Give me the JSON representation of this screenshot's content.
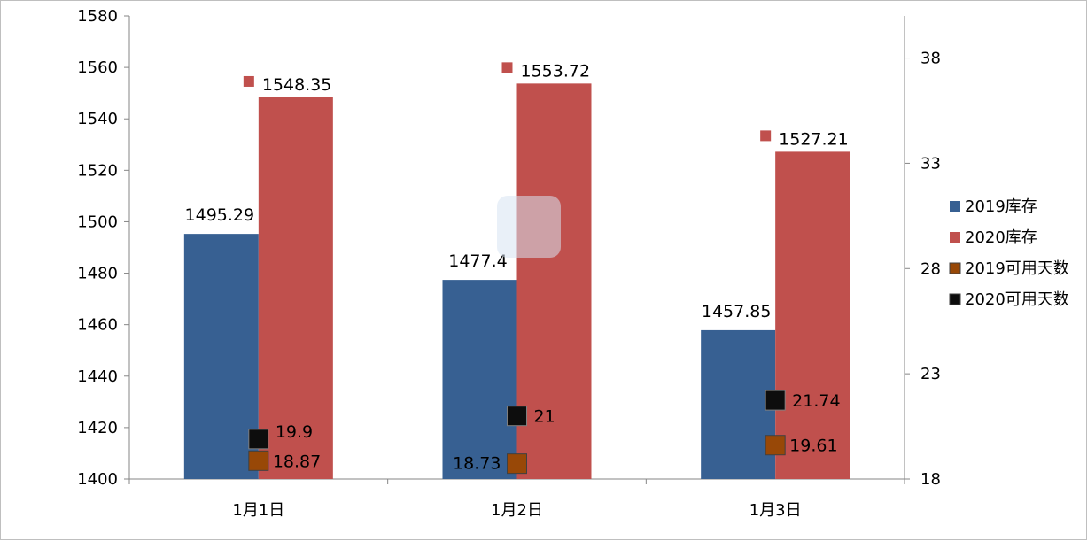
{
  "chart_data": {
    "type": "bar",
    "categories": [
      "1月1日",
      "1月2日",
      "1月3日"
    ],
    "series": [
      {
        "name": "2019库存",
        "axis": "left",
        "kind": "bar",
        "color": "#376092",
        "values": [
          1495.29,
          1477.4,
          1457.85
        ],
        "labels": [
          "1495.29",
          "1477.4",
          "1457.85"
        ]
      },
      {
        "name": "2020库存",
        "axis": "left",
        "kind": "bar",
        "color": "#c0504d",
        "values": [
          1548.35,
          1553.72,
          1527.21
        ],
        "labels": [
          "1548.35",
          "1553.72",
          "1527.21"
        ]
      },
      {
        "name": "2019可用天数",
        "axis": "right",
        "kind": "marker",
        "color": "#984807",
        "values": [
          18.87,
          18.73,
          19.61
        ],
        "labels": [
          "18.87",
          "18.73",
          "19.61"
        ]
      },
      {
        "name": "2020可用天数",
        "axis": "right",
        "kind": "marker",
        "color": "#0d0d0d",
        "values": [
          19.9,
          21,
          21.74
        ],
        "labels": [
          "19.9",
          "21",
          "21.74"
        ]
      }
    ],
    "y_left": {
      "min": 1400,
      "max": 1580,
      "step": 20,
      "ticks": [
        "1400",
        "1420",
        "1440",
        "1460",
        "1480",
        "1500",
        "1520",
        "1540",
        "1560",
        "1580"
      ]
    },
    "y_right": {
      "min": 18,
      "max": 40,
      "ticks": [
        "18",
        "23",
        "28",
        "33",
        "38"
      ]
    },
    "legend_position": "right",
    "grid": false
  }
}
